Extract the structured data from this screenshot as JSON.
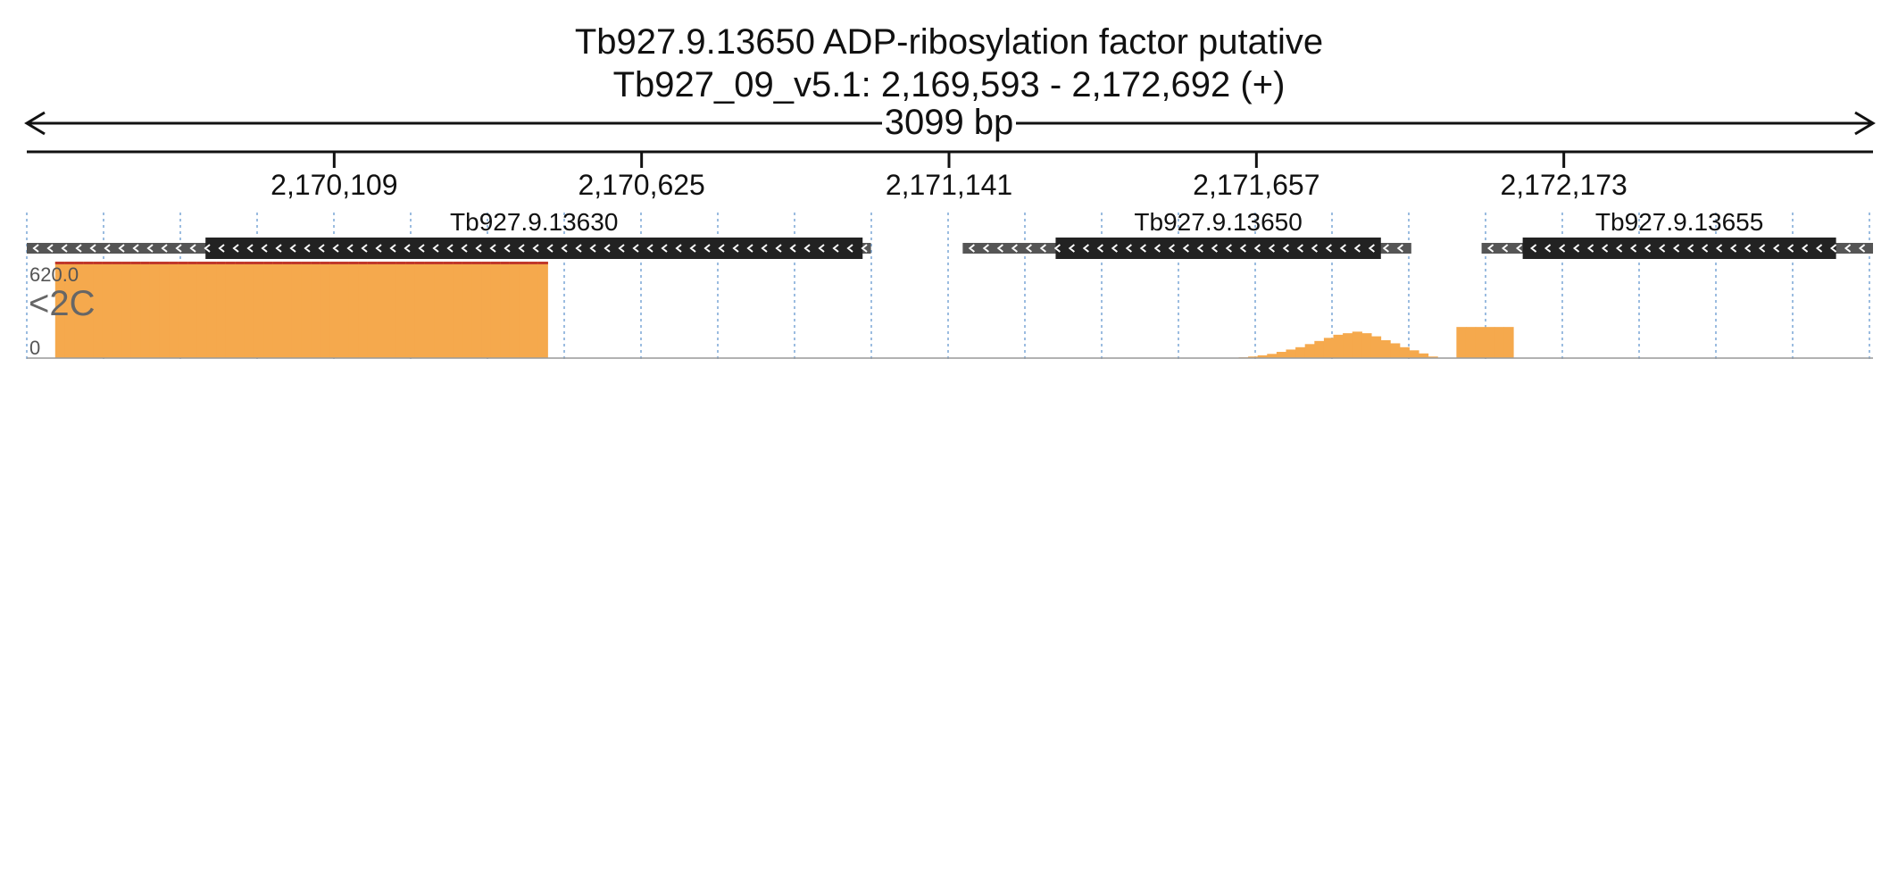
{
  "header": {
    "title_line1": "Tb927.9.13650  ADP-ribosylation factor  putative",
    "title_line2": "Tb927_09_v5.1: 2,169,593 - 2,172,692 (+)",
    "span_label": "3099 bp"
  },
  "colors": {
    "clip_marker": "#c0392b",
    "gene_body": "#222222",
    "gene_utr": "#555555",
    "grid": "#7aa6d6"
  },
  "chart_data": {
    "type": "area",
    "region": {
      "start": 2169593,
      "end": 2172692
    },
    "ticks": [
      {
        "pos": 2170109,
        "label": "2,170,109"
      },
      {
        "pos": 2170625,
        "label": "2,170,625"
      },
      {
        "pos": 2171141,
        "label": "2,171,141"
      },
      {
        "pos": 2171657,
        "label": "2,171,657"
      },
      {
        "pos": 2172173,
        "label": "2,172,173"
      }
    ],
    "genes": [
      {
        "name": "Tb927.9.13630",
        "strand": "-",
        "start": 2169593,
        "end": 2171010,
        "cds_start": 2169893,
        "cds_end": 2170996
      },
      {
        "name": "Tb927.9.13650",
        "strand": "-",
        "start": 2171164,
        "end": 2171917,
        "cds_start": 2171320,
        "cds_end": 2171866
      },
      {
        "name": "Tb927.9.13655",
        "strand": "-",
        "start": 2172035,
        "end": 2172692,
        "cds_start": 2172104,
        "cds_end": 2172630
      }
    ],
    "ylim": [
      0,
      620
    ],
    "y_max_label": "620.0",
    "y_min_label": "0",
    "bin_size": 20,
    "series": [
      {
        "name": "<2C",
        "color": "#f5a94d",
        "values": [
          0,
          0,
          0,
          620,
          620,
          620,
          620,
          620,
          620,
          620,
          620,
          620,
          620,
          620,
          620,
          620,
          620,
          620,
          620,
          620,
          620,
          620,
          620,
          620,
          620,
          620,
          620,
          620,
          620,
          620,
          620,
          620,
          620,
          620,
          620,
          620,
          620,
          620,
          620,
          620,
          620,
          620,
          620,
          620,
          620,
          620,
          620,
          620,
          620,
          620,
          620,
          620,
          620,
          620,
          620,
          0,
          0,
          0,
          0,
          0,
          0,
          0,
          0,
          0,
          0,
          0,
          0,
          0,
          0,
          0,
          0,
          0,
          0,
          0,
          0,
          0,
          0,
          0,
          0,
          0,
          0,
          0,
          0,
          0,
          0,
          0,
          0,
          0,
          0,
          0,
          0,
          0,
          0,
          0,
          0,
          0,
          0,
          0,
          0,
          0,
          0,
          0,
          0,
          0,
          0,
          0,
          0,
          0,
          0,
          0,
          0,
          0,
          0,
          0,
          0,
          0,
          0,
          0,
          0,
          0,
          0,
          0,
          0,
          0,
          0,
          0,
          0,
          0,
          5,
          10,
          18,
          27,
          40,
          55,
          70,
          90,
          110,
          130,
          150,
          160,
          170,
          160,
          140,
          115,
          95,
          70,
          50,
          30,
          10,
          0,
          0,
          200,
          200,
          200,
          200,
          200,
          200,
          0,
          0,
          0,
          0,
          0,
          0,
          0,
          0,
          0,
          0,
          0,
          0,
          0,
          0,
          0,
          0,
          0,
          0,
          0,
          0,
          0,
          0,
          0,
          0,
          0,
          0,
          0,
          0,
          0,
          0,
          0,
          0,
          0,
          0,
          0,
          0,
          0,
          0
        ]
      }
    ]
  }
}
